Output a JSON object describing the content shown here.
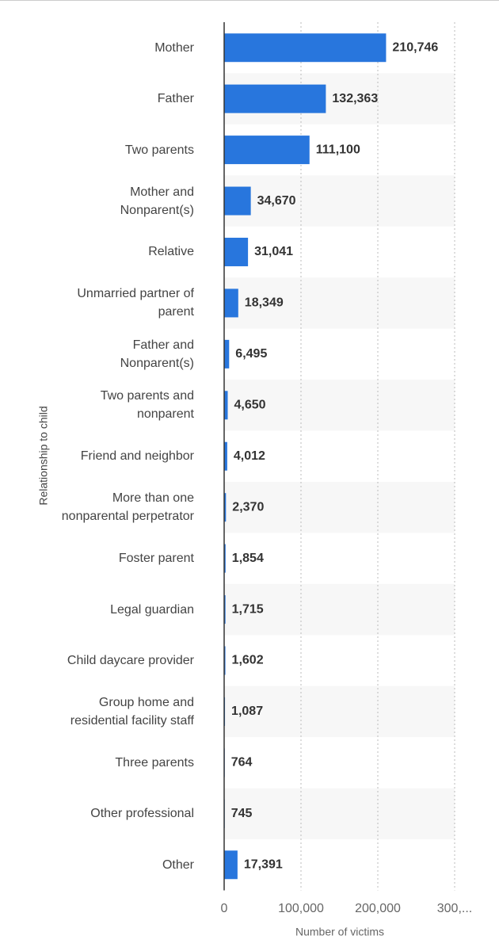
{
  "chart_data": {
    "type": "barh",
    "categories": [
      "Mother",
      "Father",
      "Two parents",
      "Mother and Nonparent(s)",
      "Relative",
      "Unmarried partner of parent",
      "Father and Nonparent(s)",
      "Two parents and nonparent",
      "Friend and neighbor",
      "More than one nonparental perpetrator",
      "Foster parent",
      "Legal guardian",
      "Child daycare provider",
      "Group home and residential facility staff",
      "Three parents",
      "Other professional",
      "Other"
    ],
    "values": [
      210746,
      132363,
      111100,
      34670,
      31041,
      18349,
      6495,
      4650,
      4012,
      2370,
      1854,
      1715,
      1602,
      1087,
      764,
      745,
      17391
    ],
    "value_labels": [
      "210,746",
      "132,363",
      "111,100",
      "34,670",
      "31,041",
      "18,349",
      "6,495",
      "4,650",
      "4,012",
      "2,370",
      "1,854",
      "1,715",
      "1,602",
      "1,087",
      "764",
      "745",
      "17,391"
    ],
    "color": "#2876dd",
    "xlim": [
      0,
      300000
    ],
    "xticks": [
      0,
      {
        "value": 100000,
        "label": "100,000"
      },
      {
        "value": 200000,
        "label": "200,000"
      },
      {
        "value": 300000,
        "label": "300,..."
      }
    ],
    "xlabel": "Number of victims",
    "ylabel": "Relationship to child",
    "grid": true
  }
}
